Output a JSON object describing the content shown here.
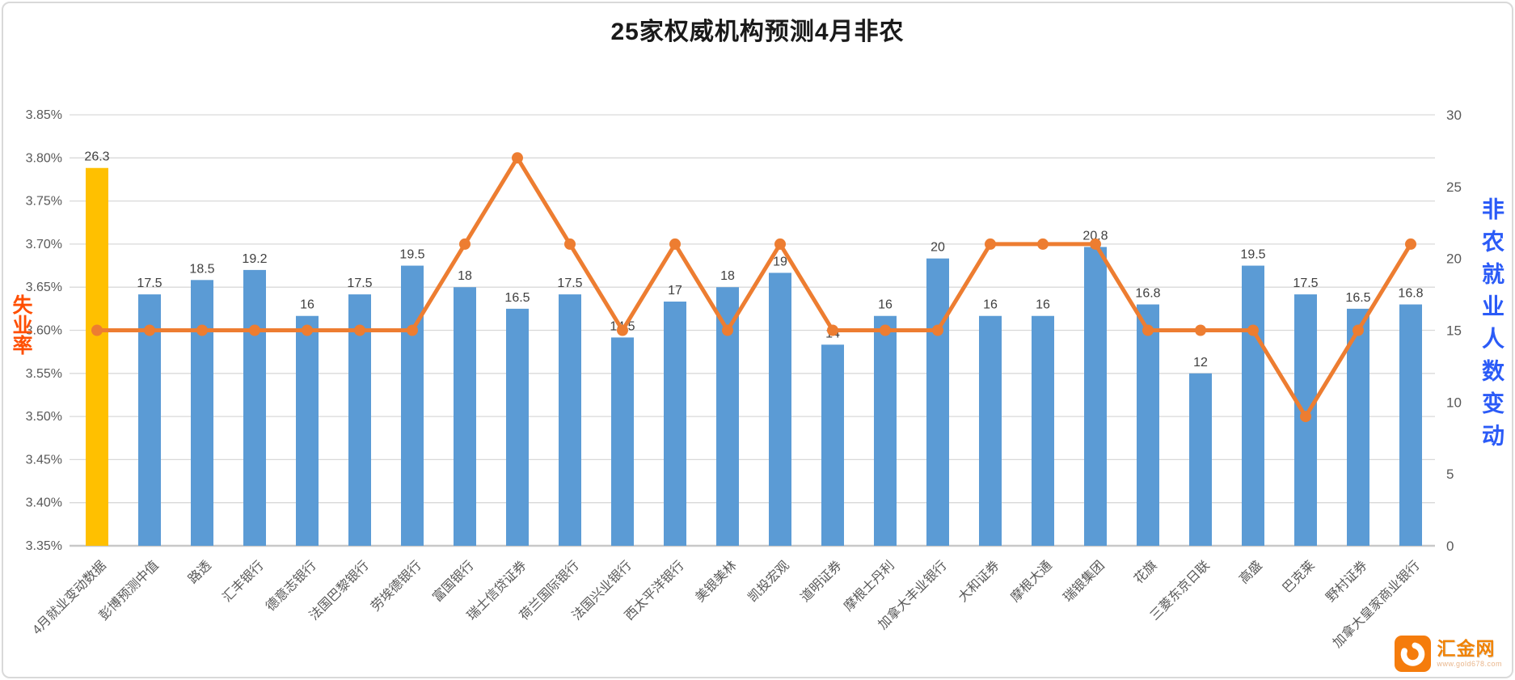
{
  "title": "25家权威机构预测4月非农",
  "left_axis": {
    "title": "失业率",
    "color": "#ff4e00",
    "tick_labels": [
      "3.85%",
      "3.80%",
      "3.75%",
      "3.70%",
      "3.65%",
      "3.60%",
      "3.55%",
      "3.50%",
      "3.45%",
      "3.40%",
      "3.35%"
    ]
  },
  "right_axis": {
    "title": "非农就业人数变动",
    "color": "#2b5bf7",
    "tick_labels": [
      "30",
      "25",
      "20",
      "15",
      "10",
      "5",
      "0"
    ]
  },
  "chart_data": {
    "type": "combo-bar-line",
    "categories": [
      "4月就业变动数据",
      "彭博预测中值",
      "路透",
      "汇丰银行",
      "德意志银行",
      "法国巴黎银行",
      "劳埃德银行",
      "富国银行",
      "瑞士信贷证券",
      "荷兰国际银行",
      "法国兴业银行",
      "西太平洋银行",
      "美银美林",
      "凯投宏观",
      "道明证券",
      "摩根士丹利",
      "加拿大丰业银行",
      "大和证券",
      "摩根大通",
      "瑞银集团",
      "花旗",
      "三菱东京日联",
      "高盛",
      "巴克莱",
      "野村证券",
      "加拿大皇家商业银行"
    ],
    "series": [
      {
        "name": "非农就业人数变动",
        "type": "bar",
        "axis": "right",
        "values": [
          26.3,
          17.5,
          18.5,
          19.2,
          16,
          17.5,
          19.5,
          18,
          16.5,
          17.5,
          14.5,
          17,
          18,
          19,
          14,
          16,
          20,
          16,
          16,
          20.8,
          16.8,
          12,
          19.5,
          17.5,
          16.5,
          16.8
        ],
        "color": "#5b9bd5",
        "highlight_index": 0,
        "highlight_color": "#ffc000",
        "data_labels": true
      },
      {
        "name": "失业率",
        "type": "line",
        "axis": "left",
        "values": [
          3.6,
          3.6,
          3.6,
          3.6,
          3.6,
          3.6,
          3.6,
          3.7,
          3.8,
          3.7,
          3.6,
          3.7,
          3.6,
          3.7,
          3.6,
          3.6,
          3.6,
          3.7,
          3.7,
          3.7,
          3.6,
          3.6,
          3.6,
          3.5,
          3.6,
          3.7
        ],
        "color": "#ed7d31"
      }
    ],
    "left_axis_range": [
      3.35,
      3.85
    ],
    "right_axis_range": [
      0,
      30
    ],
    "grid": true,
    "legend_position": "none"
  },
  "watermark": {
    "name": "汇金网",
    "url": "www.gold678.com"
  },
  "style_colors": {
    "grid_line": "#d9d9d9",
    "axis_line": "#c8c8c8",
    "tick_label": "#595959",
    "data_label": "#404040"
  }
}
